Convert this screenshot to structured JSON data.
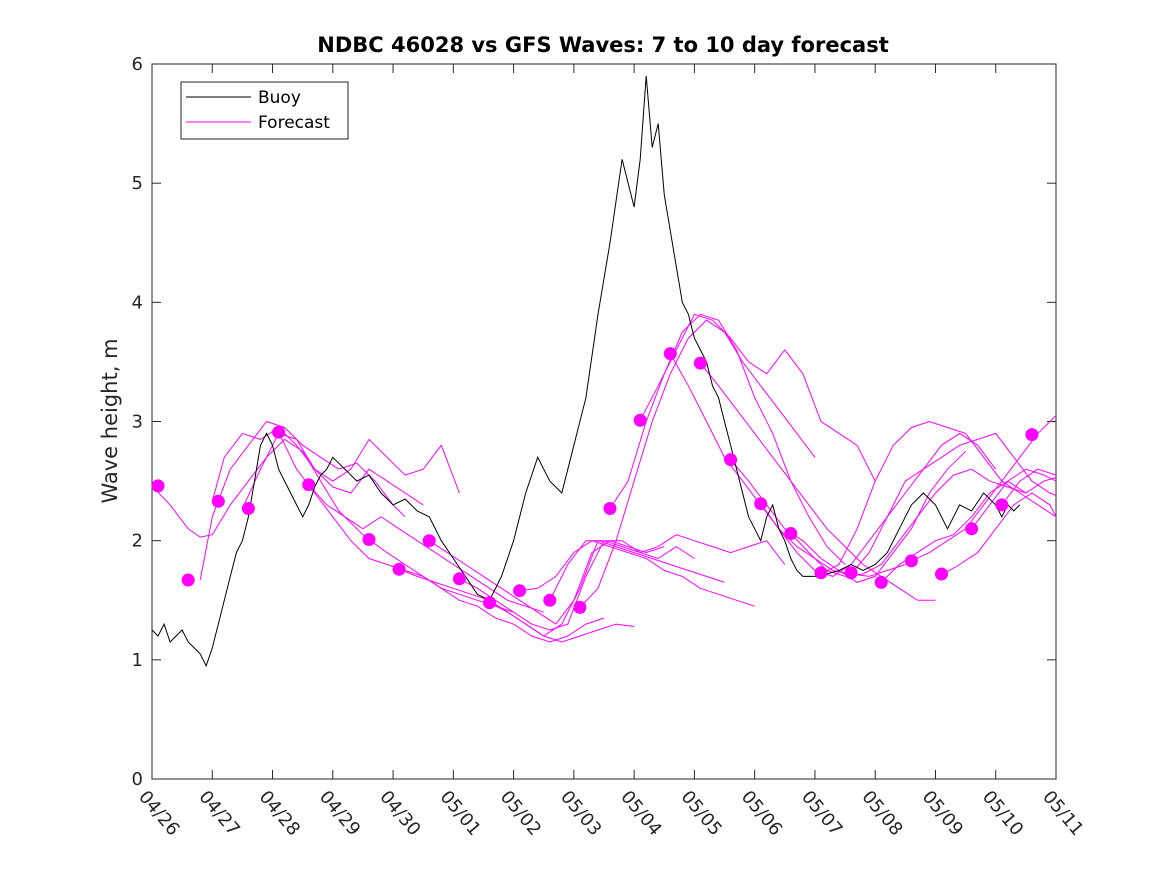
{
  "chart_data": {
    "type": "line",
    "title": "NDBC 46028 vs GFS Waves: 7 to 10 day forecast",
    "xlabel": "",
    "ylabel": "Wave height, m",
    "x_tick_labels": [
      "04/26",
      "04/27",
      "04/28",
      "04/29",
      "04/30",
      "05/01",
      "05/02",
      "05/03",
      "05/04",
      "05/05",
      "05/06",
      "05/07",
      "05/08",
      "05/09",
      "05/10",
      "05/11"
    ],
    "xlim": [
      0,
      15
    ],
    "ylim": [
      0,
      6
    ],
    "y_ticks": [
      "0",
      "1",
      "2",
      "3",
      "4",
      "5",
      "6"
    ],
    "grid": false,
    "legend_position": "top-left",
    "colors": {
      "buoy": "#000000",
      "forecast": "#ff00ff"
    },
    "buoy": {
      "name": "Buoy",
      "x": [
        0,
        0.1,
        0.2,
        0.3,
        0.4,
        0.5,
        0.6,
        0.7,
        0.8,
        0.9,
        1.0,
        1.1,
        1.2,
        1.3,
        1.4,
        1.5,
        1.6,
        1.7,
        1.8,
        1.9,
        2.0,
        2.1,
        2.2,
        2.3,
        2.4,
        2.5,
        2.6,
        2.7,
        2.8,
        2.9,
        3.0,
        3.2,
        3.4,
        3.6,
        3.8,
        4.0,
        4.2,
        4.4,
        4.6,
        4.8,
        5.0,
        5.2,
        5.4,
        5.6,
        5.8,
        6.0,
        6.2,
        6.4,
        6.6,
        6.8,
        7.0,
        7.2,
        7.4,
        7.6,
        7.8,
        8.0,
        8.1,
        8.2,
        8.3,
        8.4,
        8.5,
        8.6,
        8.7,
        8.8,
        8.9,
        9.0,
        9.1,
        9.2,
        9.3,
        9.4,
        9.5,
        9.6,
        9.7,
        9.8,
        9.9,
        10.0,
        10.1,
        10.2,
        10.3,
        10.4,
        10.5,
        10.6,
        10.7,
        10.8,
        10.9,
        11.0,
        11.2,
        11.4,
        11.6,
        11.8,
        12.0,
        12.2,
        12.4,
        12.6,
        12.8,
        13.0,
        13.2,
        13.4,
        13.6,
        13.8,
        14.0,
        14.1,
        14.2,
        14.3,
        14.4
      ],
      "y": [
        1.25,
        1.2,
        1.3,
        1.15,
        1.2,
        1.25,
        1.15,
        1.1,
        1.05,
        0.95,
        1.1,
        1.3,
        1.5,
        1.7,
        1.9,
        2.0,
        2.2,
        2.5,
        2.8,
        2.9,
        2.8,
        2.6,
        2.5,
        2.4,
        2.3,
        2.2,
        2.3,
        2.45,
        2.55,
        2.6,
        2.7,
        2.6,
        2.5,
        2.55,
        2.4,
        2.3,
        2.35,
        2.25,
        2.2,
        2.0,
        1.85,
        1.7,
        1.55,
        1.5,
        1.7,
        2.0,
        2.4,
        2.7,
        2.5,
        2.4,
        2.8,
        3.2,
        3.9,
        4.5,
        5.2,
        4.8,
        5.2,
        5.9,
        5.3,
        5.5,
        4.9,
        4.6,
        4.3,
        4.0,
        3.9,
        3.7,
        3.6,
        3.5,
        3.3,
        3.2,
        3.0,
        2.8,
        2.6,
        2.4,
        2.2,
        2.1,
        2.0,
        2.2,
        2.3,
        2.1,
        2.0,
        1.85,
        1.75,
        1.7,
        1.7,
        1.7,
        1.72,
        1.75,
        1.8,
        1.75,
        1.8,
        1.9,
        2.1,
        2.3,
        2.4,
        2.3,
        2.1,
        2.3,
        2.25,
        2.4,
        2.3,
        2.2,
        2.3,
        2.25,
        2.3
      ]
    },
    "forecast_series": [
      {
        "name": "Forecast",
        "x": [
          0,
          0.3,
          0.6,
          0.8,
          1.0,
          1.3,
          1.6,
          1.9,
          2.2,
          2.5,
          2.8,
          3.1,
          3.4,
          3.6
        ],
        "y": [
          2.46,
          2.3,
          2.1,
          2.03,
          2.05,
          2.3,
          2.5,
          2.7,
          2.85,
          2.75,
          2.5,
          2.25,
          2.1,
          2.0
        ]
      },
      {
        "name": "",
        "x": [
          0.8,
          1.0,
          1.3,
          1.6,
          1.9,
          2.2,
          2.5,
          2.8,
          3.1,
          3.4,
          3.7,
          4.0,
          4.2
        ],
        "y": [
          1.67,
          2.2,
          2.6,
          2.8,
          3.0,
          2.95,
          2.8,
          2.7,
          2.6,
          2.65,
          2.5,
          2.3,
          2.2
        ]
      },
      {
        "name": "",
        "x": [
          1.0,
          1.2,
          1.5,
          1.8,
          2.1,
          2.4,
          2.7,
          3.0,
          3.3,
          3.6,
          3.9,
          4.2,
          4.5
        ],
        "y": [
          2.33,
          2.7,
          2.9,
          2.85,
          2.95,
          2.8,
          2.6,
          2.45,
          2.4,
          2.6,
          2.5,
          2.4,
          2.3
        ]
      },
      {
        "name": "",
        "x": [
          1.5,
          1.8,
          2.1,
          2.4,
          2.7,
          3.0,
          3.3,
          3.6,
          3.9,
          4.2,
          4.5,
          4.8,
          5.1
        ],
        "y": [
          2.27,
          2.6,
          2.9,
          2.85,
          2.6,
          2.5,
          2.6,
          2.85,
          2.7,
          2.55,
          2.6,
          2.8,
          2.4
        ]
      },
      {
        "name": "",
        "x": [
          2.1,
          2.4,
          2.7,
          3.0,
          3.3,
          3.6,
          3.9,
          4.2,
          4.5,
          4.8,
          5.1,
          5.4,
          5.7,
          6.0
        ],
        "y": [
          2.91,
          2.6,
          2.4,
          2.2,
          2.0,
          1.85,
          1.8,
          1.75,
          1.7,
          1.6,
          1.55,
          1.5,
          1.45,
          1.4
        ]
      },
      {
        "name": "",
        "x": [
          2.6,
          2.9,
          3.2,
          3.5,
          3.8,
          4.1,
          4.4,
          4.7,
          5.0,
          5.3,
          5.6,
          5.9,
          6.2,
          6.5
        ],
        "y": [
          2.47,
          2.3,
          2.2,
          2.1,
          2.2,
          2.1,
          2.0,
          1.9,
          1.8,
          1.7,
          1.6,
          1.5,
          1.45,
          1.4
        ]
      },
      {
        "name": "",
        "x": [
          3.6,
          3.9,
          4.2,
          4.5,
          4.8,
          5.1,
          5.4,
          5.7,
          6.0,
          6.3,
          6.6,
          6.9,
          7.2,
          7.5
        ],
        "y": [
          2.01,
          1.9,
          1.8,
          1.7,
          1.6,
          1.5,
          1.45,
          1.35,
          1.3,
          1.2,
          1.15,
          1.2,
          1.3,
          1.35
        ]
      },
      {
        "name": "",
        "x": [
          4.1,
          4.4,
          4.7,
          5.0,
          5.3,
          5.6,
          5.9,
          6.2,
          6.5,
          6.8,
          7.1,
          7.4,
          7.7,
          8.0
        ],
        "y": [
          1.76,
          1.7,
          1.65,
          1.6,
          1.55,
          1.5,
          1.4,
          1.3,
          1.2,
          1.15,
          1.2,
          1.25,
          1.3,
          1.28
        ]
      },
      {
        "name": "",
        "x": [
          4.6,
          4.9,
          5.2,
          5.5,
          5.8,
          6.1,
          6.4,
          6.7,
          7.0,
          7.3,
          7.6,
          7.9,
          8.2,
          8.5
        ],
        "y": [
          2.0,
          1.9,
          1.8,
          1.7,
          1.6,
          1.5,
          1.4,
          1.3,
          1.5,
          1.9,
          2.0,
          1.95,
          1.9,
          1.95
        ]
      },
      {
        "name": "",
        "x": [
          5.1,
          5.4,
          5.7,
          6.0,
          6.3,
          6.6,
          6.9,
          7.2,
          7.5,
          7.8,
          8.1,
          8.4,
          8.7,
          9.0
        ],
        "y": [
          1.68,
          1.6,
          1.5,
          1.4,
          1.3,
          1.25,
          1.3,
          1.7,
          2.0,
          2.0,
          1.9,
          1.85,
          1.95,
          1.85
        ]
      },
      {
        "name": "",
        "x": [
          5.6,
          5.9,
          6.2,
          6.5,
          6.8,
          7.1,
          7.4,
          7.7,
          8.0,
          8.3,
          8.6,
          8.9,
          9.2,
          9.5
        ],
        "y": [
          1.48,
          1.4,
          1.3,
          1.2,
          1.3,
          1.6,
          2.0,
          1.95,
          1.9,
          1.85,
          1.8,
          1.75,
          1.7,
          1.65
        ]
      },
      {
        "name": "",
        "x": [
          6.1,
          6.4,
          6.7,
          7.0,
          7.3,
          7.6,
          7.9,
          8.2,
          8.5,
          8.8,
          9.1,
          9.4,
          9.7,
          10.0
        ],
        "y": [
          1.58,
          1.6,
          1.7,
          1.9,
          2.0,
          1.95,
          1.9,
          1.85,
          1.75,
          1.7,
          1.6,
          1.55,
          1.5,
          1.45
        ]
      },
      {
        "name": "",
        "x": [
          6.6,
          6.9,
          7.2,
          7.5,
          7.8,
          8.1,
          8.4,
          8.7,
          9.0,
          9.3,
          9.6,
          9.9,
          10.2,
          10.5
        ],
        "y": [
          1.5,
          1.8,
          2.0,
          2.0,
          1.95,
          1.9,
          1.95,
          2.05,
          2.0,
          1.95,
          1.9,
          1.95,
          2.0,
          1.8
        ]
      },
      {
        "name": "",
        "x": [
          7.1,
          7.4,
          7.7,
          8.0,
          8.3,
          8.6,
          8.9,
          9.2,
          9.5,
          9.8,
          10.1,
          10.4,
          10.7,
          11.0
        ],
        "y": [
          1.44,
          1.6,
          2.0,
          2.5,
          3.0,
          3.4,
          3.7,
          3.85,
          3.75,
          3.5,
          3.3,
          3.1,
          2.9,
          2.7
        ]
      },
      {
        "name": "",
        "x": [
          7.6,
          7.9,
          8.2,
          8.5,
          8.8,
          9.1,
          9.4,
          9.7,
          10.0,
          10.3,
          10.6,
          10.9,
          11.2,
          11.5
        ],
        "y": [
          2.27,
          2.5,
          3.0,
          3.4,
          3.75,
          3.9,
          3.85,
          3.6,
          3.2,
          2.9,
          2.5,
          2.2,
          1.95,
          1.8
        ]
      },
      {
        "name": "",
        "x": [
          8.1,
          8.4,
          8.7,
          9.0,
          9.3,
          9.6,
          9.9,
          10.2,
          10.5,
          10.8,
          11.1,
          11.4,
          11.7,
          12.0
        ],
        "y": [
          3.01,
          3.3,
          3.6,
          3.9,
          3.85,
          3.7,
          3.5,
          3.4,
          3.6,
          3.4,
          3.0,
          2.9,
          2.8,
          2.5
        ]
      },
      {
        "name": "",
        "x": [
          8.6,
          8.9,
          9.2,
          9.5,
          9.8,
          10.1,
          10.4,
          10.7,
          11.0,
          11.3,
          11.6,
          11.9,
          12.2,
          12.5
        ],
        "y": [
          3.57,
          3.3,
          3.0,
          2.7,
          2.5,
          2.3,
          2.1,
          1.95,
          1.85,
          1.75,
          1.72,
          1.7,
          1.75,
          1.8
        ]
      },
      {
        "name": "",
        "x": [
          9.1,
          9.4,
          9.7,
          10.0,
          10.3,
          10.6,
          10.9,
          11.2,
          11.5,
          11.8,
          12.1,
          12.4,
          12.7,
          13.0
        ],
        "y": [
          3.49,
          3.3,
          3.1,
          2.9,
          2.7,
          2.5,
          2.3,
          2.1,
          1.95,
          1.8,
          1.7,
          1.6,
          1.5,
          1.5
        ]
      },
      {
        "name": "",
        "x": [
          9.6,
          9.9,
          10.2,
          10.5,
          10.8,
          11.1,
          11.4,
          11.7,
          12.0,
          12.3,
          12.6,
          12.9,
          13.2,
          13.5
        ],
        "y": [
          2.68,
          2.5,
          2.3,
          2.1,
          2.0,
          1.85,
          1.75,
          1.65,
          1.7,
          1.9,
          2.1,
          2.4,
          2.6,
          2.75
        ]
      },
      {
        "name": "",
        "x": [
          10.1,
          10.4,
          10.7,
          11.0,
          11.3,
          11.6,
          11.9,
          12.2,
          12.5,
          12.8,
          13.1,
          13.4,
          13.7,
          14.0
        ],
        "y": [
          2.31,
          2.1,
          1.9,
          1.75,
          1.7,
          1.8,
          2.0,
          2.2,
          2.4,
          2.6,
          2.8,
          2.9,
          2.8,
          2.6
        ]
      },
      {
        "name": "",
        "x": [
          10.6,
          10.9,
          11.2,
          11.5,
          11.8,
          12.1,
          12.4,
          12.7,
          13.0,
          13.3,
          13.6,
          13.9,
          14.2,
          14.5
        ],
        "y": [
          2.06,
          1.9,
          1.75,
          1.7,
          1.72,
          1.8,
          2.0,
          2.2,
          2.4,
          2.55,
          2.6,
          2.5,
          2.45,
          2.4
        ]
      },
      {
        "name": "",
        "x": [
          11.1,
          11.4,
          11.7,
          12.0,
          12.3,
          12.6,
          12.9,
          13.2,
          13.5,
          13.8,
          14.1,
          14.4,
          14.7,
          15.0
        ],
        "y": [
          1.72,
          1.8,
          2.1,
          2.5,
          2.8,
          2.95,
          3.0,
          2.95,
          2.9,
          2.7,
          2.5,
          2.4,
          2.3,
          2.2
        ]
      },
      {
        "name": "",
        "x": [
          11.6,
          11.9,
          12.2,
          12.5,
          12.8,
          13.1,
          13.4,
          13.7,
          14.0,
          14.3,
          14.6,
          14.9,
          15.0
        ],
        "y": [
          1.72,
          1.9,
          2.2,
          2.5,
          2.6,
          2.7,
          2.8,
          2.85,
          2.9,
          2.7,
          2.5,
          2.4,
          2.38
        ]
      },
      {
        "name": "",
        "x": [
          12.1,
          12.4,
          12.7,
          13.0,
          13.3,
          13.6,
          13.9,
          14.2,
          14.5,
          14.8,
          15.0
        ],
        "y": [
          1.65,
          1.8,
          1.9,
          2.0,
          2.05,
          2.2,
          2.4,
          2.5,
          2.4,
          2.5,
          2.53
        ]
      },
      {
        "name": "",
        "x": [
          12.6,
          12.9,
          13.2,
          13.5,
          13.8,
          14.1,
          14.4,
          14.7,
          15.0
        ],
        "y": [
          1.83,
          1.9,
          2.0,
          2.1,
          2.3,
          2.5,
          2.7,
          2.9,
          3.05
        ]
      },
      {
        "name": "",
        "x": [
          13.1,
          13.4,
          13.7,
          14.0,
          14.3,
          14.6,
          14.9,
          15.0
        ],
        "y": [
          1.71,
          1.8,
          1.9,
          2.1,
          2.3,
          2.4,
          2.3,
          2.2
        ]
      },
      {
        "name": "",
        "x": [
          13.6,
          13.9,
          14.2,
          14.5,
          14.8,
          15.0
        ],
        "y": [
          2.1,
          2.3,
          2.5,
          2.6,
          2.55,
          2.5
        ]
      },
      {
        "name": "",
        "x": [
          14.1,
          14.4,
          14.7,
          15.0
        ],
        "y": [
          2.3,
          2.5,
          2.6,
          2.55
        ]
      }
    ],
    "forecast_markers": {
      "x": [
        0.1,
        0.6,
        1.1,
        1.6,
        2.1,
        2.6,
        3.6,
        4.1,
        4.6,
        5.1,
        5.6,
        6.1,
        6.6,
        7.1,
        7.6,
        8.1,
        8.6,
        9.1,
        9.6,
        10.1,
        10.6,
        11.1,
        11.6,
        12.1,
        12.6,
        13.1,
        13.6,
        14.1,
        14.6
      ],
      "y": [
        2.46,
        1.67,
        2.33,
        2.27,
        2.91,
        2.47,
        2.01,
        1.76,
        2.0,
        1.68,
        1.48,
        1.58,
        1.5,
        1.44,
        2.27,
        3.01,
        3.57,
        3.49,
        2.68,
        2.31,
        2.06,
        1.73,
        1.73,
        1.65,
        1.83,
        1.72,
        2.1,
        2.3,
        2.89
      ]
    },
    "legend": [
      {
        "label": "Buoy",
        "series": "buoy"
      },
      {
        "label": "Forecast",
        "series": "forecast"
      }
    ]
  }
}
